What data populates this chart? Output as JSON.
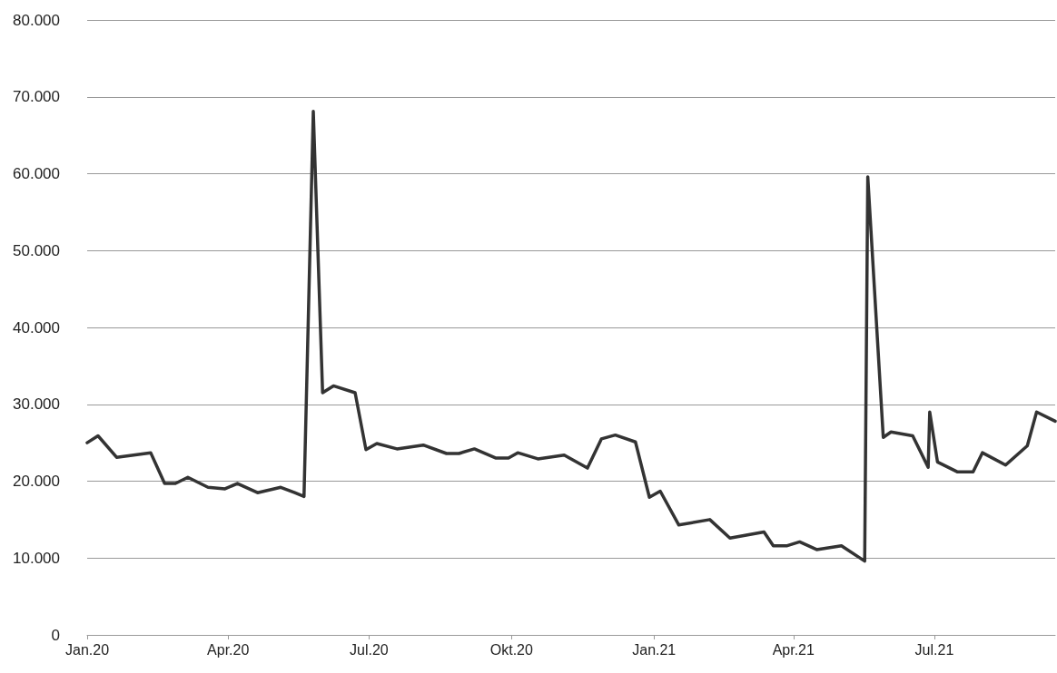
{
  "chart_data": {
    "type": "line",
    "grid": "y",
    "marker": "none",
    "line_style": "solid",
    "x": [
      "2020-01-01",
      "2020-01-08",
      "2020-01-20",
      "2020-02-11",
      "2020-02-20",
      "2020-02-27",
      "2020-03-06",
      "2020-03-19",
      "2020-03-30",
      "2020-04-07",
      "2020-04-20",
      "2020-05-05",
      "2020-05-14",
      "2020-05-20",
      "2020-05-26",
      "2020-06-01",
      "2020-06-08",
      "2020-06-22",
      "2020-06-29",
      "2020-07-06",
      "2020-07-19",
      "2020-08-05",
      "2020-08-20",
      "2020-08-28",
      "2020-09-07",
      "2020-09-21",
      "2020-09-29",
      "2020-10-05",
      "2020-10-18",
      "2020-11-04",
      "2020-11-19",
      "2020-11-28",
      "2020-12-07",
      "2020-12-20",
      "2020-12-29",
      "2021-01-05",
      "2021-01-17",
      "2021-02-06",
      "2021-02-19",
      "2021-03-13",
      "2021-03-19",
      "2021-03-28",
      "2021-04-05",
      "2021-04-16",
      "2021-05-02",
      "2021-05-17",
      "2021-05-19",
      "2021-05-29",
      "2021-06-03",
      "2021-06-17",
      "2021-06-27",
      "2021-06-28",
      "2021-07-03",
      "2021-07-16",
      "2021-07-26",
      "2021-08-01",
      "2021-08-16",
      "2021-08-30",
      "2021-09-05",
      "2021-09-17"
    ],
    "series": [
      {
        "color": "#333333",
        "values": [
          25000,
          25900,
          23100,
          23700,
          19700,
          19700,
          20500,
          19200,
          19000,
          19700,
          18500,
          19200,
          18500,
          18000,
          68100,
          31500,
          32400,
          31500,
          24100,
          24900,
          24200,
          24700,
          23600,
          23600,
          24200,
          23000,
          23000,
          23700,
          22900,
          23400,
          21700,
          25500,
          26000,
          25100,
          17900,
          18700,
          14300,
          15000,
          12600,
          13400,
          11600,
          11600,
          12100,
          11100,
          11600,
          9600,
          59600,
          25700,
          26400,
          25900,
          21800,
          29000,
          22500,
          21200,
          21200,
          23700,
          22100,
          24600,
          29000,
          27800
        ]
      }
    ],
    "xlim": [
      "2020-01-01",
      "2021-09-17"
    ],
    "xticks": [
      {
        "value": "2020-01-01",
        "label": "Jan.20"
      },
      {
        "value": "2020-04-01",
        "label": "Apr.20"
      },
      {
        "value": "2020-07-01",
        "label": "Jul.20"
      },
      {
        "value": "2020-10-01",
        "label": "Okt.20"
      },
      {
        "value": "2021-01-01",
        "label": "Jan.21"
      },
      {
        "value": "2021-04-01",
        "label": "Apr.21"
      },
      {
        "value": "2021-07-01",
        "label": "Jul.21"
      }
    ],
    "ylim": [
      0,
      80000
    ],
    "yticks": [
      0,
      {
        "value": 10000,
        "label": "10.000"
      },
      {
        "value": 20000,
        "label": "20.000"
      },
      {
        "value": 30000,
        "label": "30.000"
      },
      {
        "value": 40000,
        "label": "40.000"
      },
      {
        "value": 50000,
        "label": "50.000"
      },
      {
        "value": 60000,
        "label": "60.000"
      },
      {
        "value": 70000,
        "label": "70.000"
      },
      {
        "value": 80000,
        "label": "80.000"
      }
    ]
  }
}
